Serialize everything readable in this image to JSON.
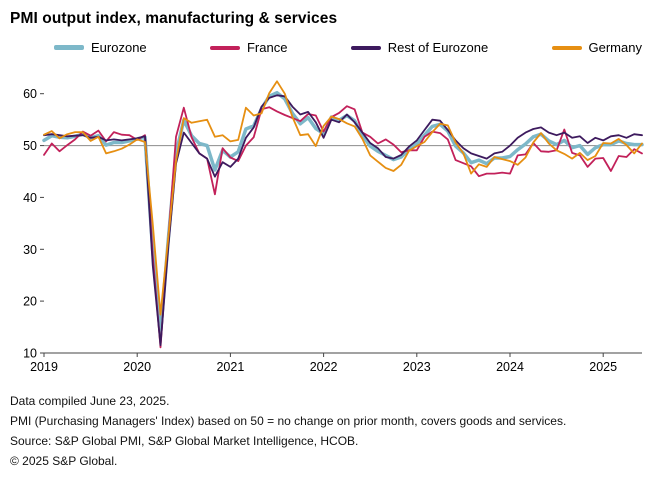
{
  "title": "PMI output index, manufacturing & services",
  "legend": [
    {
      "label": "Eurozone",
      "color": "#7db8c9"
    },
    {
      "label": "France",
      "color": "#c2215a"
    },
    {
      "label": "Rest of Eurozone",
      "color": "#3d1a5e"
    },
    {
      "label": "Germany",
      "color": "#e68f12"
    }
  ],
  "footer": {
    "line1": "Data compiled June 23, 2025.",
    "line2": "PMI (Purchasing Managers' Index) based on 50 = no change on prior month, covers goods and services.",
    "line3": "Source: S&P Global PMI, S&P Global Market Intelligence, HCOB.",
    "line4": "© 2025 S&P Global."
  },
  "chart_data": {
    "type": "line",
    "title": "PMI output index, manufacturing & services",
    "x_start": "2019-01",
    "x_end": "2025-06",
    "x_frequency": "monthly",
    "x_tick_labels": [
      "2019",
      "2020",
      "2021",
      "2022",
      "2023",
      "2024",
      "2025"
    ],
    "y_ticks": [
      10,
      20,
      30,
      40,
      50,
      60
    ],
    "ylim": [
      10,
      64
    ],
    "reference_line": 50,
    "grid": false,
    "legend_position": "top",
    "series": [
      {
        "name": "Eurozone",
        "color": "#7db8c9",
        "width": 3.5,
        "values": [
          51.0,
          51.9,
          51.6,
          51.5,
          51.8,
          52.2,
          51.5,
          51.9,
          50.1,
          50.6,
          50.6,
          50.9,
          51.3,
          51.6,
          29.7,
          13.6,
          31.9,
          48.5,
          54.9,
          51.9,
          50.4,
          50.0,
          45.3,
          49.1,
          47.8,
          48.8,
          53.2,
          53.8,
          57.1,
          59.5,
          60.2,
          59.0,
          56.2,
          54.2,
          55.4,
          53.3,
          52.3,
          55.5,
          54.9,
          55.8,
          54.8,
          52.0,
          49.9,
          48.9,
          48.1,
          47.3,
          47.8,
          49.3,
          50.3,
          52.0,
          53.7,
          54.1,
          52.8,
          49.9,
          48.6,
          46.7,
          47.2,
          46.5,
          47.6,
          47.6,
          47.9,
          49.2,
          50.3,
          51.7,
          52.2,
          50.9,
          50.2,
          51.0,
          49.6,
          50.0,
          48.3,
          49.6,
          50.2,
          50.2,
          50.9,
          50.4,
          50.2,
          50.2
        ]
      },
      {
        "name": "France",
        "color": "#c2215a",
        "width": 1.8,
        "values": [
          48.2,
          50.4,
          48.9,
          50.1,
          51.2,
          52.7,
          51.9,
          52.9,
          50.8,
          52.6,
          52.1,
          52.0,
          51.1,
          52.0,
          28.9,
          11.1,
          32.1,
          51.7,
          57.3,
          51.6,
          48.5,
          47.5,
          40.6,
          49.5,
          47.7,
          47.0,
          50.0,
          51.6,
          57.0,
          57.4,
          56.6,
          55.9,
          55.3,
          54.7,
          56.1,
          55.8,
          52.7,
          55.5,
          56.3,
          57.6,
          57.0,
          52.5,
          51.7,
          50.4,
          51.2,
          50.2,
          48.7,
          49.1,
          49.1,
          51.7,
          52.7,
          52.4,
          51.2,
          47.2,
          46.6,
          46.0,
          44.1,
          44.6,
          44.6,
          44.8,
          44.6,
          48.1,
          48.3,
          50.5,
          48.9,
          48.8,
          49.1,
          53.1,
          48.6,
          48.1,
          45.9,
          47.5,
          47.6,
          45.1,
          48.0,
          47.8,
          49.3,
          48.5
        ]
      },
      {
        "name": "Rest of Eurozone",
        "color": "#3d1a5e",
        "width": 1.8,
        "values": [
          52.0,
          52.2,
          52.0,
          51.8,
          51.9,
          52.0,
          51.5,
          51.7,
          51.0,
          51.2,
          51.0,
          51.2,
          51.4,
          51.8,
          27.0,
          11.5,
          30.5,
          46.5,
          52.5,
          50.5,
          48.5,
          47.5,
          44.0,
          46.8,
          45.9,
          47.5,
          51.5,
          53.5,
          57.5,
          59.2,
          59.7,
          59.5,
          57.5,
          56.0,
          56.5,
          54.5,
          51.5,
          55.0,
          54.5,
          56.0,
          54.5,
          52.5,
          50.5,
          49.5,
          47.8,
          47.5,
          48.2,
          49.8,
          51.0,
          53.0,
          55.0,
          54.8,
          53.0,
          51.0,
          49.5,
          48.5,
          48.0,
          47.5,
          48.5,
          48.8,
          50.0,
          51.5,
          52.5,
          53.2,
          53.5,
          52.5,
          52.0,
          52.5,
          51.5,
          51.8,
          50.5,
          51.5,
          51.0,
          51.8,
          52.0,
          51.5,
          52.2,
          52.0
        ]
      },
      {
        "name": "Germany",
        "color": "#e68f12",
        "width": 1.8,
        "values": [
          52.1,
          52.8,
          51.4,
          52.2,
          52.6,
          52.6,
          50.9,
          51.7,
          48.5,
          48.9,
          49.4,
          50.2,
          51.2,
          50.7,
          35.0,
          17.4,
          32.3,
          47.0,
          55.3,
          54.4,
          54.7,
          55.0,
          51.7,
          52.0,
          50.8,
          51.1,
          57.3,
          55.8,
          56.2,
          60.1,
          62.4,
          60.0,
          55.5,
          52.0,
          52.2,
          49.9,
          53.8,
          55.6,
          55.1,
          54.3,
          53.7,
          51.3,
          48.1,
          46.9,
          45.7,
          45.1,
          46.3,
          49.0,
          49.9,
          50.7,
          52.6,
          54.2,
          53.9,
          50.6,
          48.5,
          44.6,
          46.4,
          45.9,
          47.8,
          47.4,
          47.0,
          46.3,
          47.7,
          50.6,
          52.4,
          50.4,
          49.1,
          48.4,
          47.5,
          48.6,
          47.2,
          48.0,
          50.5,
          50.4,
          51.3,
          50.1,
          48.5,
          50.4
        ]
      }
    ]
  }
}
